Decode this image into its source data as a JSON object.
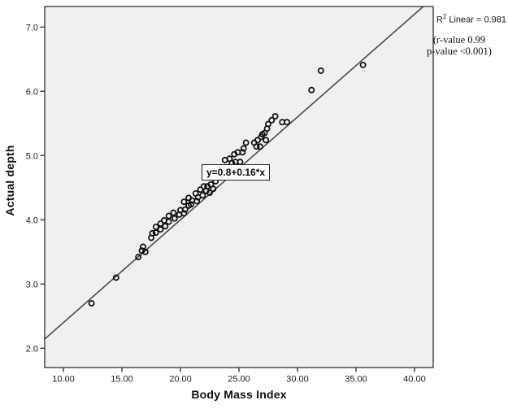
{
  "chart_data": {
    "type": "scatter",
    "title": "",
    "xlabel": "Body Mass Index",
    "ylabel": "Actual depth",
    "xlim": [
      8.4,
      41.6
    ],
    "ylim": [
      1.7,
      7.32
    ],
    "x_ticks": [
      10,
      15,
      20,
      25,
      30,
      35,
      40
    ],
    "x_tick_labels": [
      "10.00",
      "15.00",
      "20.00",
      "25.00",
      "30.00",
      "35.00",
      "40.00"
    ],
    "y_ticks": [
      2,
      3,
      4,
      5,
      6,
      7
    ],
    "y_tick_labels": [
      "2.0",
      "3.0",
      "4.0",
      "5.0",
      "6.0",
      "7.0"
    ],
    "grid": false,
    "legend": null,
    "fit_line": {
      "label": "y=0.8+0.16*x",
      "intercept": 0.8,
      "slope": 0.16
    },
    "annotations": {
      "r2_prefix": "R",
      "r2_sup": "2",
      "r2_rest": " Linear = 0.981",
      "stats_line1": "(r-value 0.99",
      "stats_line2": "p-value <0.001)"
    },
    "points": [
      [
        12.4,
        2.7
      ],
      [
        14.5,
        3.1
      ],
      [
        16.4,
        3.42
      ],
      [
        16.7,
        3.52
      ],
      [
        16.8,
        3.58
      ],
      [
        17.0,
        3.5
      ],
      [
        17.5,
        3.72
      ],
      [
        17.6,
        3.79
      ],
      [
        17.9,
        3.8
      ],
      [
        17.9,
        3.89
      ],
      [
        18.3,
        3.85
      ],
      [
        18.3,
        3.94
      ],
      [
        18.6,
        3.99
      ],
      [
        18.7,
        3.9
      ],
      [
        19.0,
        3.97
      ],
      [
        19.0,
        4.06
      ],
      [
        19.4,
        4.11
      ],
      [
        19.5,
        4.02
      ],
      [
        19.9,
        4.08
      ],
      [
        20.0,
        4.15
      ],
      [
        20.3,
        4.1
      ],
      [
        20.3,
        4.28
      ],
      [
        20.4,
        4.16
      ],
      [
        20.7,
        4.22
      ],
      [
        20.7,
        4.34
      ],
      [
        20.9,
        4.24
      ],
      [
        21.0,
        4.3
      ],
      [
        21.3,
        4.41
      ],
      [
        21.4,
        4.29
      ],
      [
        21.5,
        4.35
      ],
      [
        21.7,
        4.47
      ],
      [
        21.9,
        4.38
      ],
      [
        22.0,
        4.52
      ],
      [
        22.2,
        4.45
      ],
      [
        22.3,
        4.52
      ],
      [
        22.5,
        4.42
      ],
      [
        22.6,
        4.55
      ],
      [
        22.8,
        4.48
      ],
      [
        23.0,
        4.6
      ],
      [
        23.8,
        4.93
      ],
      [
        24.2,
        4.95
      ],
      [
        24.4,
        4.88
      ],
      [
        24.6,
        5.02
      ],
      [
        24.7,
        4.9
      ],
      [
        24.9,
        5.05
      ],
      [
        25.1,
        4.9
      ],
      [
        25.3,
        5.05
      ],
      [
        25.4,
        5.11
      ],
      [
        25.6,
        5.2
      ],
      [
        26.3,
        5.2
      ],
      [
        26.5,
        5.14
      ],
      [
        26.6,
        5.24
      ],
      [
        26.8,
        5.14
      ],
      [
        26.9,
        5.29
      ],
      [
        27.0,
        5.33
      ],
      [
        27.2,
        5.35
      ],
      [
        27.3,
        5.24
      ],
      [
        27.4,
        5.42
      ],
      [
        27.5,
        5.49
      ],
      [
        27.8,
        5.55
      ],
      [
        28.1,
        5.61
      ],
      [
        28.7,
        5.52
      ],
      [
        29.1,
        5.52
      ],
      [
        31.2,
        6.02
      ],
      [
        32.0,
        6.32
      ],
      [
        35.6,
        6.41
      ]
    ],
    "colors": {
      "marker": "#0d0d0d",
      "fit_line": "#3e4e4b",
      "plot_bg": "#f0f1ee",
      "plot_border": "#3a4140",
      "tick": "#2b2b2b",
      "tick_text": "#1a1a1a"
    }
  }
}
